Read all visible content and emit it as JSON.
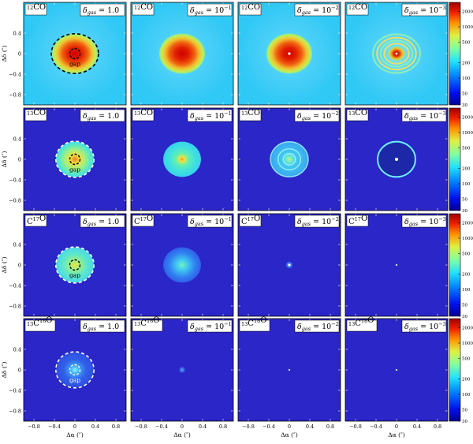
{
  "chart_data": {
    "type": "heatmap",
    "description_grid": "4 rows (isotopologues) x 4 columns (gas depletion factor) of channel/intensity maps",
    "isotopologues": [
      {
        "label": "12CO",
        "parts": [
          {
            "sup": "12"
          },
          {
            "t": "CO"
          }
        ]
      },
      {
        "label": "13CO",
        "parts": [
          {
            "sup": "13"
          },
          {
            "t": "CO"
          }
        ]
      },
      {
        "label": "C17O",
        "parts": [
          {
            "t": "C"
          },
          {
            "sup": "17"
          },
          {
            "t": "O"
          }
        ]
      },
      {
        "label": "13C18O",
        "parts": [
          {
            "sup": "13"
          },
          {
            "t": "C"
          },
          {
            "sup": "18"
          },
          {
            "t": "O"
          }
        ]
      }
    ],
    "delta_gas": [
      {
        "label": "δgas = 1.0",
        "value": 1.0,
        "exp_text": "1.0"
      },
      {
        "label": "δgas = 10^-1",
        "value": 0.1,
        "exp_text": "10",
        "exp_sup": "−1"
      },
      {
        "label": "δgas = 10^-2",
        "value": 0.01,
        "exp_text": "10",
        "exp_sup": "−2"
      },
      {
        "label": "δgas = 10^-3",
        "value": 0.001,
        "exp_text": "10",
        "exp_sup": "−3"
      }
    ],
    "delta_symbol": "δ",
    "delta_sub": "gas",
    "xlabel": "Δα (″)",
    "ylabel": "Δδ (″)",
    "xlim": [
      -1.0,
      1.0
    ],
    "ylim": [
      -1.0,
      1.0
    ],
    "xticks": [
      "−0.8",
      "−0.4",
      "0",
      "0.4",
      "0.8"
    ],
    "xtick_values": [
      -0.8,
      -0.4,
      0,
      0.4,
      0.8
    ],
    "yticks": [
      "0.4",
      "0",
      "−0.4",
      "−0.8"
    ],
    "ytick_values": [
      0.4,
      0,
      -0.4,
      -0.8
    ],
    "colorbar": {
      "scale": "log",
      "ticks": [
        "2000",
        "1000",
        "500",
        "200",
        "100",
        "50",
        "30"
      ],
      "tick_values": [
        2000,
        1000,
        500,
        200,
        100,
        50,
        30
      ],
      "range": [
        30,
        3000
      ]
    },
    "gap_label": "gap",
    "gap_inner_radius_arcsec": 0.1,
    "outer_edge_radius_arcsec": 0.4,
    "panels": [
      {
        "row": 0,
        "col": 0,
        "kind": "bright_disk",
        "gap_marker": true
      },
      {
        "row": 0,
        "col": 1,
        "kind": "bright_disk"
      },
      {
        "row": 0,
        "col": 2,
        "kind": "bright_disk_dot"
      },
      {
        "row": 0,
        "col": 3,
        "kind": "rings_disk"
      },
      {
        "row": 1,
        "col": 0,
        "kind": "disk_yellow_center",
        "gap_marker": true
      },
      {
        "row": 1,
        "col": 1,
        "kind": "disk_cyan"
      },
      {
        "row": 1,
        "col": 2,
        "kind": "disk_rings_dim"
      },
      {
        "row": 1,
        "col": 3,
        "kind": "disk_depleted"
      },
      {
        "row": 2,
        "col": 0,
        "kind": "disk_cyan_compact",
        "gap_marker": true
      },
      {
        "row": 2,
        "col": 1,
        "kind": "disk_blue"
      },
      {
        "row": 2,
        "col": 2,
        "kind": "point"
      },
      {
        "row": 2,
        "col": 3,
        "kind": "point_faint"
      },
      {
        "row": 3,
        "col": 0,
        "kind": "disk_blue_center",
        "gap_marker": true
      },
      {
        "row": 3,
        "col": 1,
        "kind": "point_blob"
      },
      {
        "row": 3,
        "col": 2,
        "kind": "point_faint"
      },
      {
        "row": 3,
        "col": 3,
        "kind": "point_faint"
      }
    ],
    "colors": {
      "background_high": "#30c8f5",
      "background_low": "#2a26c8",
      "core_red": "#c80000",
      "mid_yellow": "#f0e040",
      "mid_green": "#50e0a0",
      "cyan": "#40e0e8",
      "gap_circle_dark": "#000000",
      "gap_circle_light": "#ffffff"
    }
  }
}
